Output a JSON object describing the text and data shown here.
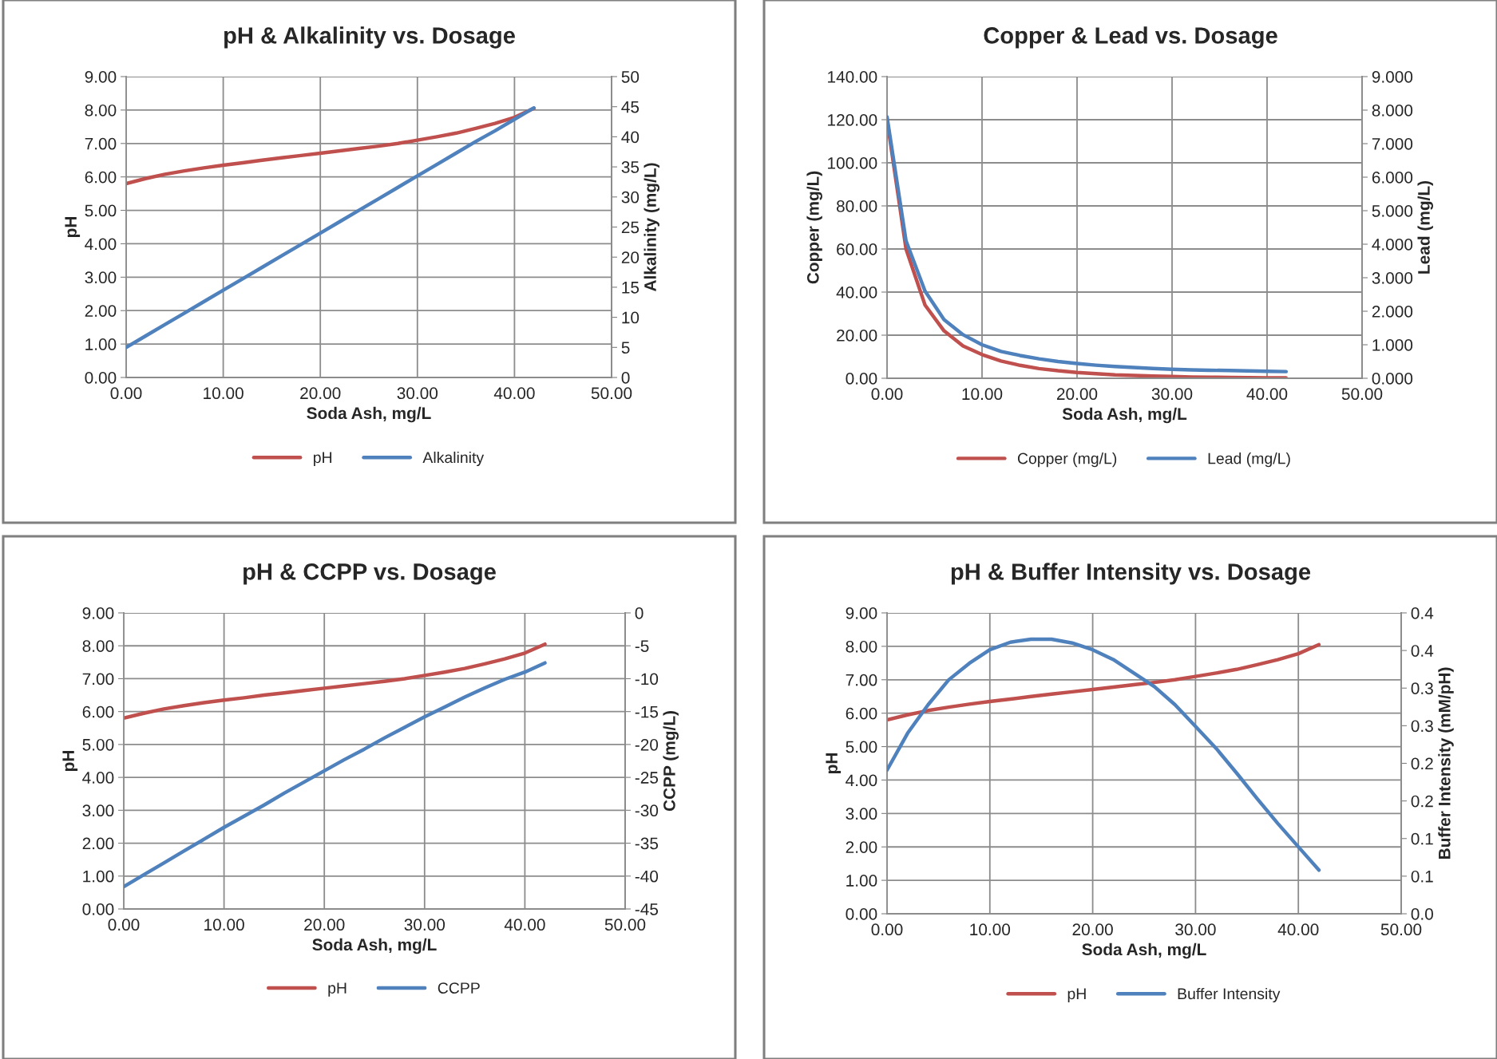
{
  "chart_data": [
    {
      "type": "line",
      "title": "pH & Alkalinity vs. Dosage",
      "xlabel": "Soda Ash, mg/L",
      "ylabel": "pH",
      "y2label": "Alkalinity (mg/L)",
      "x": [
        0,
        2,
        4,
        6,
        8,
        10,
        12,
        14,
        16,
        18,
        20,
        22,
        24,
        26,
        28,
        30,
        32,
        34,
        36,
        38,
        40,
        42
      ],
      "series": [
        {
          "name": "pH",
          "color": "#c0504d",
          "values": [
            5.8,
            5.95,
            6.08,
            6.18,
            6.27,
            6.35,
            6.42,
            6.5,
            6.57,
            6.64,
            6.71,
            6.78,
            6.85,
            6.92,
            7.0,
            7.1,
            7.2,
            7.31,
            7.45,
            7.6,
            7.78,
            8.05
          ]
        },
        {
          "name": "Alkalinity",
          "color": "#4f81bd",
          "axis": "y2",
          "values": [
            5.0,
            6.9,
            8.8,
            10.7,
            12.6,
            14.5,
            16.4,
            18.3,
            20.2,
            22.1,
            24.0,
            25.9,
            27.8,
            29.7,
            31.6,
            33.5,
            35.4,
            37.3,
            39.2,
            41.0,
            42.9,
            44.8
          ]
        }
      ],
      "xlim": [
        0,
        50
      ],
      "xticks": [
        {
          "value": 0,
          "label": "0.00"
        },
        {
          "value": 10,
          "label": "10.00"
        },
        {
          "value": 20,
          "label": "20.00"
        },
        {
          "value": 30,
          "label": "30.00"
        },
        {
          "value": 40,
          "label": "40.00"
        },
        {
          "value": 50,
          "label": "50.00"
        }
      ],
      "ylim": [
        0,
        9
      ],
      "yticks": [
        {
          "value": 0,
          "label": "0.00"
        },
        {
          "value": 1,
          "label": "1.00"
        },
        {
          "value": 2,
          "label": "2.00"
        },
        {
          "value": 3,
          "label": "3.00"
        },
        {
          "value": 4,
          "label": "4.00"
        },
        {
          "value": 5,
          "label": "5.00"
        },
        {
          "value": 6,
          "label": "6.00"
        },
        {
          "value": 7,
          "label": "7.00"
        },
        {
          "value": 8,
          "label": "8.00"
        },
        {
          "value": 9,
          "label": "9.00"
        }
      ],
      "y2lim": [
        0,
        50
      ],
      "y2ticks": [
        0,
        5,
        10,
        15,
        20,
        25,
        30,
        35,
        40,
        45,
        50
      ],
      "grid": true,
      "legend": "bottom"
    },
    {
      "type": "line",
      "title": "Copper & Lead vs. Dosage",
      "xlabel": "Soda Ash, mg/L",
      "ylabel": "Copper (mg/L)",
      "y2label": "Lead (mg/L)",
      "x": [
        0,
        2,
        4,
        6,
        8,
        10,
        12,
        14,
        16,
        18,
        20,
        22,
        24,
        26,
        28,
        30,
        32,
        34,
        36,
        38,
        40,
        42
      ],
      "series": [
        {
          "name": "Copper (mg/L)",
          "color": "#c0504d",
          "values": [
            120,
            60,
            34,
            22,
            15,
            11,
            8,
            6,
            4.5,
            3.5,
            2.7,
            2.1,
            1.6,
            1.3,
            1.0,
            0.8,
            0.6,
            0.5,
            0.4,
            0.3,
            0.2,
            0.2
          ]
        },
        {
          "name": "Lead (mg/L)",
          "color": "#4f81bd",
          "axis": "y2",
          "values": [
            7.8,
            4.1,
            2.6,
            1.75,
            1.3,
            1.0,
            0.8,
            0.68,
            0.58,
            0.5,
            0.44,
            0.39,
            0.35,
            0.32,
            0.29,
            0.27,
            0.25,
            0.24,
            0.23,
            0.22,
            0.21,
            0.2
          ]
        }
      ],
      "xlim": [
        0,
        50
      ],
      "xticks": [
        {
          "value": 0,
          "label": "0.00"
        },
        {
          "value": 10,
          "label": "10.00"
        },
        {
          "value": 20,
          "label": "20.00"
        },
        {
          "value": 30,
          "label": "30.00"
        },
        {
          "value": 40,
          "label": "40.00"
        },
        {
          "value": 50,
          "label": "50.00"
        }
      ],
      "ylim": [
        0,
        140
      ],
      "yticks": [
        {
          "value": 0,
          "label": "0.00"
        },
        {
          "value": 20,
          "label": "20.00"
        },
        {
          "value": 40,
          "label": "40.00"
        },
        {
          "value": 60,
          "label": "60.00"
        },
        {
          "value": 80,
          "label": "80.00"
        },
        {
          "value": 100,
          "label": "100.00"
        },
        {
          "value": 120,
          "label": "120.00"
        },
        {
          "value": 140,
          "label": "140.00"
        }
      ],
      "y2lim": [
        0,
        9
      ],
      "y2ticks": [
        {
          "value": 0,
          "label": "0.000"
        },
        {
          "value": 1,
          "label": "1.000"
        },
        {
          "value": 2,
          "label": "2.000"
        },
        {
          "value": 3,
          "label": "3.000"
        },
        {
          "value": 4,
          "label": "4.000"
        },
        {
          "value": 5,
          "label": "5.000"
        },
        {
          "value": 6,
          "label": "6.000"
        },
        {
          "value": 7,
          "label": "7.000"
        },
        {
          "value": 8,
          "label": "8.000"
        },
        {
          "value": 9,
          "label": "9.000"
        }
      ],
      "grid": true,
      "legend": "bottom"
    },
    {
      "type": "line",
      "title": "pH & CCPP vs. Dosage",
      "xlabel": "Soda Ash, mg/L",
      "ylabel": "pH",
      "y2label": "CCPP (mg/L)",
      "x": [
        0,
        2,
        4,
        6,
        8,
        10,
        12,
        14,
        16,
        18,
        20,
        22,
        24,
        26,
        28,
        30,
        32,
        34,
        36,
        38,
        40,
        42
      ],
      "series": [
        {
          "name": "pH",
          "color": "#c0504d",
          "values": [
            5.8,
            5.95,
            6.08,
            6.18,
            6.27,
            6.35,
            6.42,
            6.5,
            6.57,
            6.64,
            6.71,
            6.78,
            6.85,
            6.92,
            7.0,
            7.1,
            7.2,
            7.31,
            7.45,
            7.6,
            7.78,
            8.05
          ]
        },
        {
          "name": "CCPP",
          "color": "#4f81bd",
          "axis": "y2",
          "values": [
            -41.6,
            -39.8,
            -38.0,
            -36.2,
            -34.4,
            -32.6,
            -30.9,
            -29.2,
            -27.4,
            -25.7,
            -24.0,
            -22.3,
            -20.7,
            -19.0,
            -17.4,
            -15.8,
            -14.3,
            -12.8,
            -11.4,
            -10.1,
            -9.0,
            -7.6
          ]
        }
      ],
      "xlim": [
        0,
        50
      ],
      "xticks": [
        {
          "value": 0,
          "label": "0.00"
        },
        {
          "value": 10,
          "label": "10.00"
        },
        {
          "value": 20,
          "label": "20.00"
        },
        {
          "value": 30,
          "label": "30.00"
        },
        {
          "value": 40,
          "label": "40.00"
        },
        {
          "value": 50,
          "label": "50.00"
        }
      ],
      "ylim": [
        0,
        9
      ],
      "yticks": [
        {
          "value": 0,
          "label": "0.00"
        },
        {
          "value": 1,
          "label": "1.00"
        },
        {
          "value": 2,
          "label": "2.00"
        },
        {
          "value": 3,
          "label": "3.00"
        },
        {
          "value": 4,
          "label": "4.00"
        },
        {
          "value": 5,
          "label": "5.00"
        },
        {
          "value": 6,
          "label": "6.00"
        },
        {
          "value": 7,
          "label": "7.00"
        },
        {
          "value": 8,
          "label": "8.00"
        },
        {
          "value": 9,
          "label": "9.00"
        }
      ],
      "y2lim": [
        -45,
        0
      ],
      "y2ticks": [
        -45,
        -40,
        -35,
        -30,
        -25,
        -20,
        -15,
        -10,
        -5,
        0
      ],
      "grid": true,
      "legend": "bottom"
    },
    {
      "type": "line",
      "title": "pH & Buffer Intensity vs. Dosage",
      "xlabel": "Soda Ash, mg/L",
      "ylabel": "pH",
      "y2label": "Buffer Intensity (mM/pH)",
      "x": [
        0,
        2,
        4,
        6,
        8,
        10,
        12,
        14,
        16,
        18,
        20,
        22,
        24,
        26,
        28,
        30,
        32,
        34,
        36,
        38,
        40,
        42
      ],
      "series": [
        {
          "name": "pH",
          "color": "#c0504d",
          "values": [
            5.8,
            5.95,
            6.08,
            6.18,
            6.27,
            6.35,
            6.42,
            6.5,
            6.57,
            6.64,
            6.71,
            6.78,
            6.85,
            6.92,
            7.0,
            7.1,
            7.2,
            7.31,
            7.45,
            7.6,
            7.78,
            8.05
          ]
        },
        {
          "name": "Buffer Intensity",
          "color": "#4f81bd",
          "axis": "y2",
          "values": [
            0.191,
            0.24,
            0.278,
            0.311,
            0.333,
            0.351,
            0.361,
            0.365,
            0.365,
            0.36,
            0.351,
            0.338,
            0.32,
            0.302,
            0.278,
            0.249,
            0.22,
            0.187,
            0.153,
            0.12,
            0.089,
            0.058
          ]
        }
      ],
      "xlim": [
        0,
        50
      ],
      "xticks": [
        {
          "value": 0,
          "label": "0.00"
        },
        {
          "value": 10,
          "label": "10.00"
        },
        {
          "value": 20,
          "label": "20.00"
        },
        {
          "value": 30,
          "label": "30.00"
        },
        {
          "value": 40,
          "label": "40.00"
        },
        {
          "value": 50,
          "label": "50.00"
        }
      ],
      "ylim": [
        0,
        9
      ],
      "yticks": [
        {
          "value": 0,
          "label": "0.00"
        },
        {
          "value": 1,
          "label": "1.00"
        },
        {
          "value": 2,
          "label": "2.00"
        },
        {
          "value": 3,
          "label": "3.00"
        },
        {
          "value": 4,
          "label": "4.00"
        },
        {
          "value": 5,
          "label": "5.00"
        },
        {
          "value": 6,
          "label": "6.00"
        },
        {
          "value": 7,
          "label": "7.00"
        },
        {
          "value": 8,
          "label": "8.00"
        },
        {
          "value": 9,
          "label": "9.00"
        }
      ],
      "y2lim": [
        0,
        0.4
      ],
      "y2ticks": [
        {
          "value": 0,
          "label": "0.0"
        },
        {
          "value": 0.05,
          "label": "0.1"
        },
        {
          "value": 0.1,
          "label": "0.1"
        },
        {
          "value": 0.15,
          "label": "0.2"
        },
        {
          "value": 0.2,
          "label": "0.2"
        },
        {
          "value": 0.25,
          "label": "0.3"
        },
        {
          "value": 0.3,
          "label": "0.3"
        },
        {
          "value": 0.35,
          "label": "0.4"
        },
        {
          "value": 0.4,
          "label": "0.4"
        }
      ],
      "grid": true,
      "legend": "bottom"
    }
  ]
}
